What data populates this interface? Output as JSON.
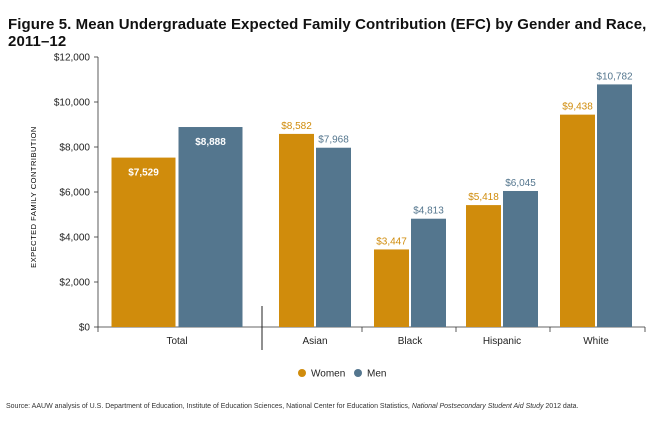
{
  "title": "Figure 5. Mean Undergraduate Expected Family Contribution (EFC) by Gender and Race, 2011–12",
  "source_prefix": "Source: AAUW analysis of U.S. Department of Education, Institute of Education Sciences, National Center for Education Statistics, ",
  "source_italic": "National Postsecondary Student Aid Study",
  "source_suffix": " 2012 data.",
  "colors": {
    "women": "#d08c0c",
    "men": "#54768e"
  },
  "chart_data": {
    "type": "bar",
    "title": "Figure 5. Mean Undergraduate Expected Family Contribution (EFC) by Gender and Race, 2011–12",
    "xlabel": "",
    "ylabel": "EXPECTED FAMILY CONTRIBUTION",
    "ylim": [
      0,
      12000
    ],
    "yticks": [
      0,
      2000,
      4000,
      6000,
      8000,
      10000,
      12000
    ],
    "ytick_labels": [
      "$0",
      "$2,000",
      "$4,000",
      "$6,000",
      "$8,000",
      "$10,000",
      "$12,000"
    ],
    "grid": false,
    "legend_position": "bottom-center",
    "categories": [
      "Total",
      "Asian",
      "Black",
      "Hispanic",
      "White"
    ],
    "series": [
      {
        "name": "Women",
        "values": [
          7529,
          8582,
          3447,
          5418,
          9438
        ],
        "labels": [
          "$7,529",
          "$8,582",
          "$3,447",
          "$5,418",
          "$9,438"
        ]
      },
      {
        "name": "Men",
        "values": [
          8888,
          7968,
          4813,
          6045,
          10782
        ],
        "labels": [
          "$8,888",
          "$7,968",
          "$4,813",
          "$6,045",
          "$10,782"
        ]
      }
    ]
  }
}
